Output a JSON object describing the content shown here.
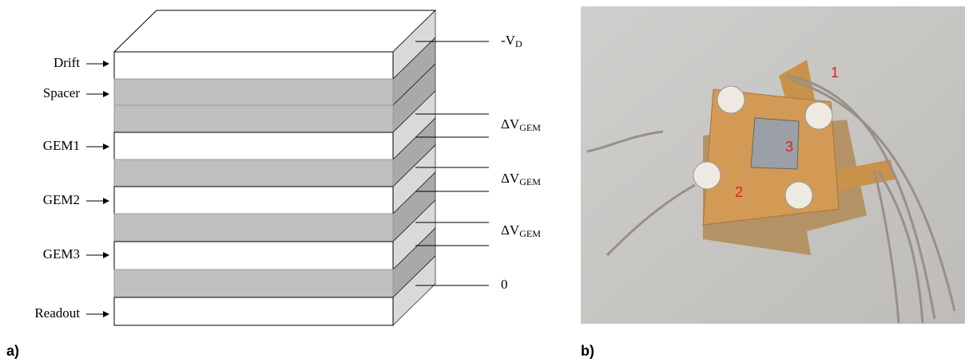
{
  "panel_a": {
    "label": "a)",
    "layers": [
      "Drift",
      "Spacer",
      "GEM1",
      "GEM2",
      "GEM3",
      "Readout"
    ],
    "voltages": [
      {
        "main": "-V",
        "sub": "D"
      },
      {
        "main": "ΔV",
        "sub": "GEM"
      },
      {
        "main": "ΔV",
        "sub": "GEM"
      },
      {
        "main": "ΔV",
        "sub": "GEM"
      },
      {
        "main": "0"
      }
    ]
  },
  "panel_b": {
    "label": "b)",
    "markers": [
      "1",
      "2",
      "3"
    ]
  }
}
